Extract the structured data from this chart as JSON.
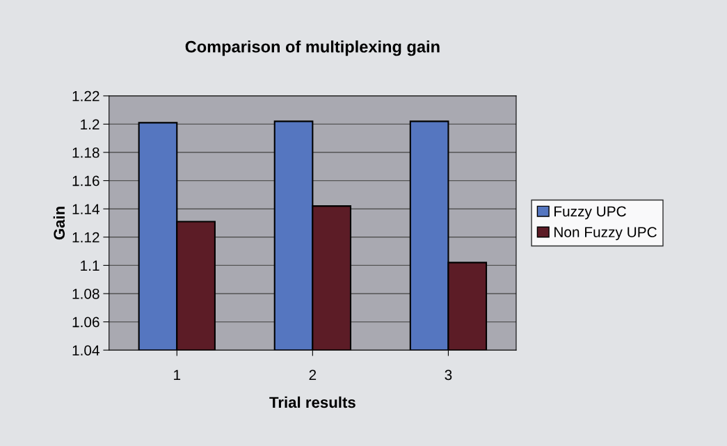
{
  "chart_data": {
    "type": "bar",
    "title": "Comparison of multiplexing gain",
    "xlabel": "Trial results",
    "ylabel": "Gain",
    "categories": [
      "1",
      "2",
      "3"
    ],
    "series": [
      {
        "name": "Fuzzy UPC",
        "color": "#5576c0",
        "values": [
          1.201,
          1.202,
          1.202
        ]
      },
      {
        "name": "Non Fuzzy UPC",
        "color": "#5c1c26",
        "values": [
          1.131,
          1.142,
          1.102
        ]
      }
    ],
    "ylim": [
      1.04,
      1.22
    ],
    "yticks": [
      {
        "value": 1.04,
        "label": "1.04"
      },
      {
        "value": 1.06,
        "label": "1.06"
      },
      {
        "value": 1.08,
        "label": "1.08"
      },
      {
        "value": 1.1,
        "label": "1.1"
      },
      {
        "value": 1.12,
        "label": "1.12"
      },
      {
        "value": 1.14,
        "label": "1.14"
      },
      {
        "value": 1.16,
        "label": "1.16"
      },
      {
        "value": 1.18,
        "label": "1.18"
      },
      {
        "value": 1.2,
        "label": "1.2"
      },
      {
        "value": 1.22,
        "label": "1.22"
      }
    ],
    "grid": "y",
    "legend": "right"
  }
}
